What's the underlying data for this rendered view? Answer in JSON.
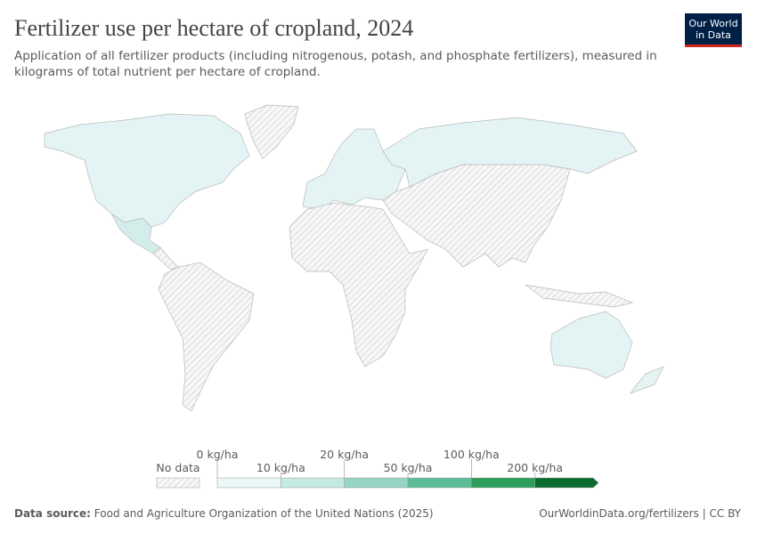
{
  "header": {
    "title": "Fertilizer use per hectare of cropland, 2024",
    "subtitle_lines": [
      "Application of all fertilizer products (including nitrogenous, potash, and phosphate fertilizers), measured in",
      "kilograms of total nutrient per hectare of cropland."
    ],
    "logo_lines": [
      "Our World",
      "in Data"
    ]
  },
  "legend": {
    "no_data": "No data",
    "ticks": [
      "0 kg/ha",
      "10 kg/ha",
      "20 kg/ha",
      "50 kg/ha",
      "100 kg/ha",
      "200 kg/ha"
    ],
    "colors": [
      "#eaf7f7",
      "#c5e9e3",
      "#98d4c4",
      "#5cbc97",
      "#2a9e5a",
      "#0b6b2f"
    ]
  },
  "footer": {
    "source_label": "Data source:",
    "source_text": "Food and Agriculture Organization of the United Nations (2025)",
    "url": "OurWorldinData.org/fertilizers | CC BY"
  }
}
